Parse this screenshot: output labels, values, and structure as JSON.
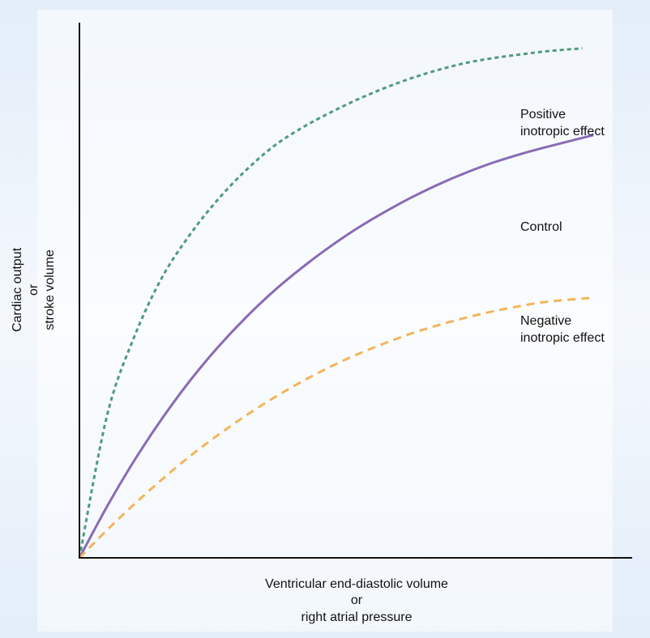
{
  "chart_data": {
    "type": "line",
    "title": "",
    "ylabel_lines": [
      "Cardiac output",
      "or",
      "stroke volume"
    ],
    "xlabel_lines": [
      "Ventricular end-diastolic volume",
      "or",
      "right atrial pressure"
    ],
    "xlim": [
      0,
      10
    ],
    "ylim": [
      0,
      10
    ],
    "grid": false,
    "ticks": false,
    "series": [
      {
        "name": "Positive inotropic effect",
        "label_lines": [
          "Positive",
          "inotropic effect"
        ],
        "color": "#4f9a7e",
        "style": "dotted",
        "x": [
          0,
          0.5,
          1,
          1.5,
          2,
          2.5,
          3,
          3.5,
          4,
          4.5,
          5,
          5.5,
          6,
          6.5,
          7,
          7.5,
          8,
          8.5,
          9.1
        ],
        "y": [
          0,
          2.66,
          4.15,
          5.25,
          6.04,
          6.69,
          7.23,
          7.68,
          8.02,
          8.3,
          8.55,
          8.77,
          8.96,
          9.12,
          9.25,
          9.34,
          9.41,
          9.47,
          9.52
        ]
      },
      {
        "name": "Control",
        "label_lines": [
          "Control"
        ],
        "color": "#8a6ab4",
        "style": "solid",
        "x": [
          0,
          0.5,
          1,
          1.5,
          2,
          2.5,
          3,
          3.5,
          4,
          4.5,
          5,
          5.5,
          6,
          6.5,
          7,
          7.5,
          8,
          8.5,
          9.3
        ],
        "y": [
          0,
          0.96,
          1.83,
          2.61,
          3.31,
          3.93,
          4.48,
          4.97,
          5.4,
          5.79,
          6.14,
          6.45,
          6.73,
          6.98,
          7.2,
          7.39,
          7.55,
          7.69,
          7.9
        ]
      },
      {
        "name": "Negative inotropic effect",
        "label_lines": [
          "Negative",
          "inotropic effect"
        ],
        "color": "#f3b45a",
        "style": "dashed",
        "x": [
          0,
          0.5,
          1,
          1.5,
          2,
          2.5,
          3,
          3.5,
          4,
          4.5,
          5,
          5.5,
          6,
          6.5,
          7,
          7.5,
          8,
          8.5,
          9.3
        ],
        "y": [
          0,
          0.52,
          1.01,
          1.47,
          1.9,
          2.29,
          2.65,
          2.98,
          3.28,
          3.55,
          3.79,
          4.0,
          4.19,
          4.35,
          4.49,
          4.61,
          4.71,
          4.79,
          4.86
        ]
      }
    ]
  }
}
